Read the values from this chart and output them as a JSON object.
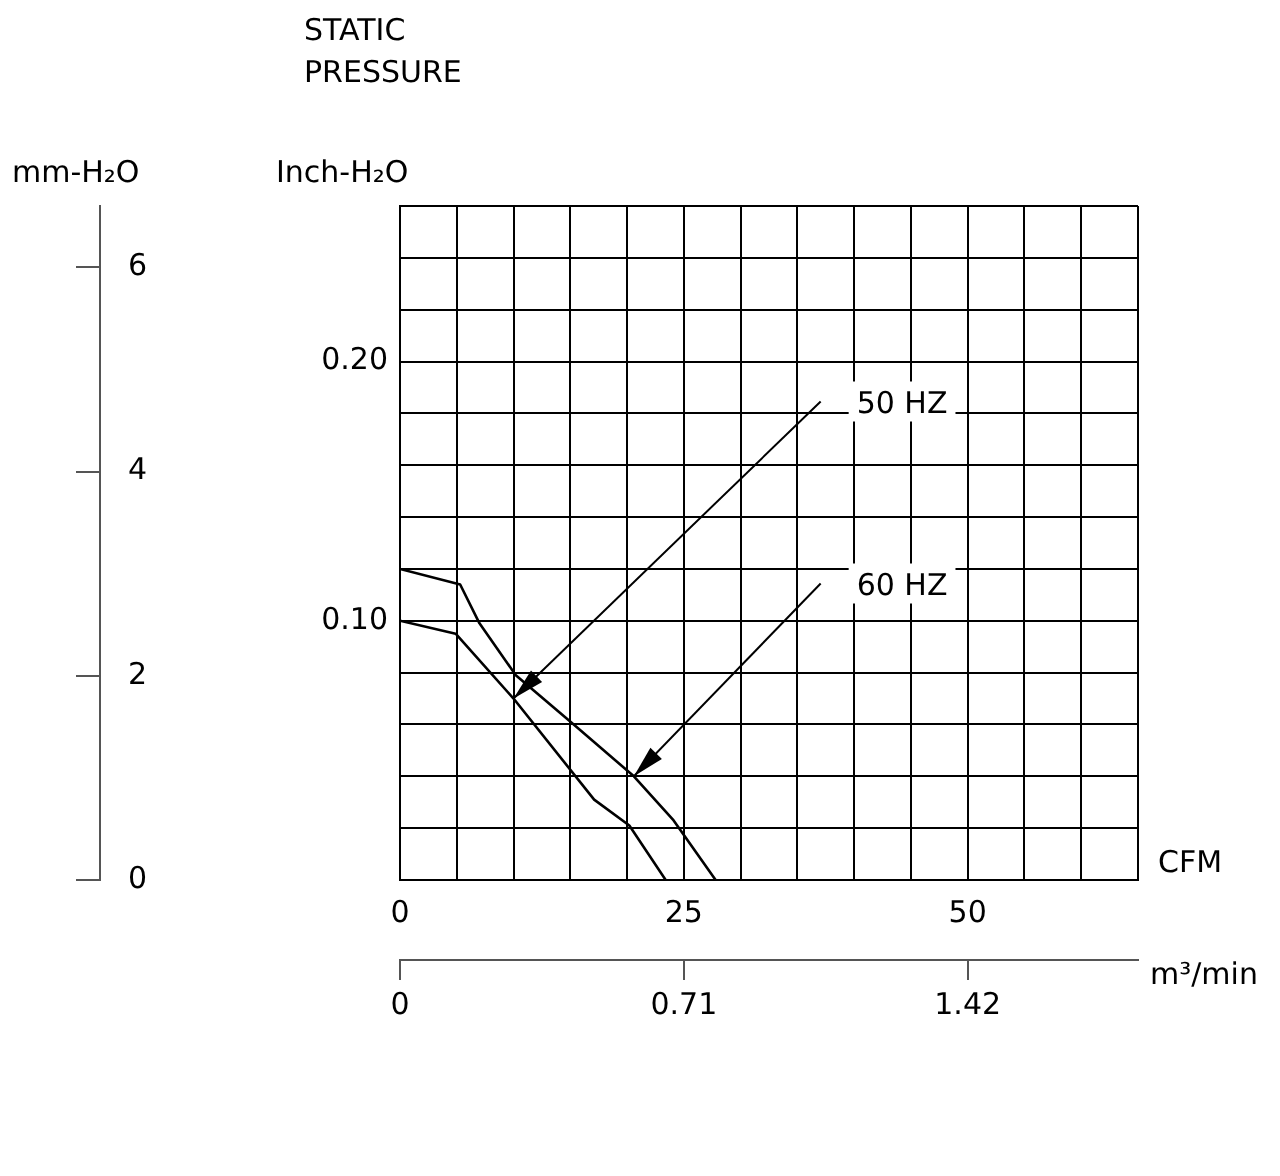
{
  "chart_data": {
    "type": "line",
    "title": "STATIC PRESSURE",
    "xlabel": "CFM",
    "x2label": "m³/min",
    "ylabel": "Inch-H₂O",
    "y3label": "mm-H₂O",
    "xlim": [
      0,
      65
    ],
    "xticks": [
      0,
      {
        "value": 5,
        "label": null
      },
      {
        "value": 10,
        "label": null
      },
      {
        "value": 15,
        "label": null
      },
      {
        "value": 20,
        "label": null
      },
      25,
      {
        "value": 30,
        "label": null
      },
      {
        "value": 35,
        "label": null
      },
      {
        "value": 40,
        "label": null
      },
      {
        "value": 45,
        "label": null
      },
      50,
      {
        "value": 55,
        "label": null
      },
      {
        "value": 60,
        "label": null
      },
      {
        "value": 65,
        "label": null
      }
    ],
    "x2lim": [
      0,
      1.846
    ],
    "x2ticks": [
      0,
      0.71,
      1.42
    ],
    "ylim": [
      0,
      0.26
    ],
    "yticks": [
      {
        "value": 0,
        "label": null
      },
      {
        "value": 0.02,
        "label": null
      },
      {
        "value": 0.04,
        "label": null
      },
      {
        "value": 0.06,
        "label": null
      },
      {
        "value": 0.08,
        "label": null
      },
      {
        "value": 0.1,
        "label": "0.10"
      },
      {
        "value": 0.12,
        "label": null
      },
      {
        "value": 0.14,
        "label": null
      },
      {
        "value": 0.16,
        "label": null
      },
      {
        "value": 0.18,
        "label": null
      },
      {
        "value": 0.2,
        "label": "0.20"
      },
      {
        "value": 0.22,
        "label": null
      },
      {
        "value": 0.24,
        "label": null
      },
      {
        "value": 0.26,
        "label": null
      }
    ],
    "y3lim": [
      0,
      6.6
    ],
    "y3ticks": [
      0,
      2,
      4,
      6
    ],
    "grid": true,
    "legend": false,
    "marker": "none",
    "line_style": "solid",
    "series": [
      {
        "name": "50 HZ",
        "color": "#000000",
        "x": [
          0,
          4.9,
          10.0,
          17.1,
          20.2,
          23.4
        ],
        "values": [
          0.1,
          0.095,
          0.07,
          0.031,
          0.021,
          0
        ]
      },
      {
        "name": "60 HZ",
        "color": "#000000",
        "x": [
          0,
          5.3,
          7.0,
          10.2,
          15.3,
          20.6,
          24.1,
          27.8
        ],
        "values": [
          0.12,
          0.114,
          0.099,
          0.079,
          0.06,
          0.04,
          0.023,
          0
        ]
      }
    ]
  }
}
